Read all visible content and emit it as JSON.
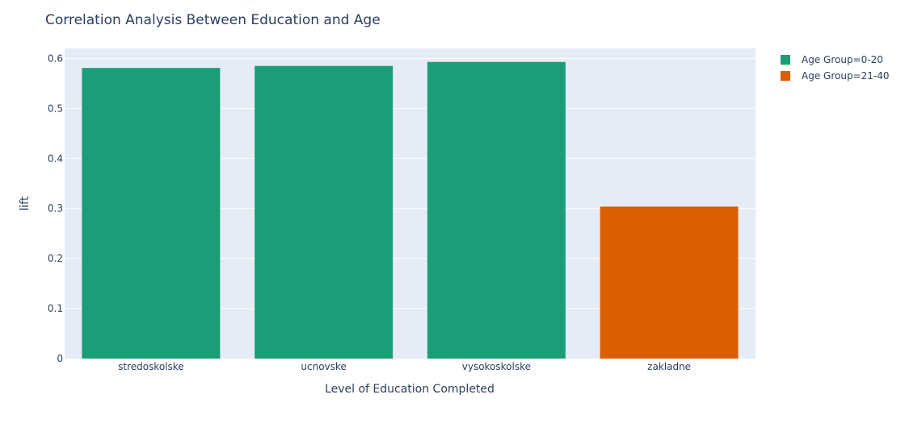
{
  "chart_data": {
    "type": "bar",
    "title": "Correlation Analysis Between Education and Age",
    "xlabel": "Level of Education Completed",
    "ylabel": "lift",
    "ylim": [
      0,
      0.62
    ],
    "yticks": [
      0,
      0.1,
      0.2,
      0.3,
      0.4,
      0.5,
      0.6
    ],
    "ytick_labels": [
      "0",
      "0.1",
      "0.2",
      "0.3",
      "0.4",
      "0.5",
      "0.6"
    ],
    "categories": [
      "stredoskolske",
      "ucnovske",
      "vysokoskolske",
      "zakladne"
    ],
    "grid": true,
    "legend_position": "top-right",
    "background_color": "#e5ecf6",
    "series": [
      {
        "name": "Age Group=0-20",
        "color": "#1b9e77",
        "values": [
          0.581,
          0.585,
          0.593,
          null
        ]
      },
      {
        "name": "Age Group=21-40",
        "color": "#d95f02",
        "values": [
          null,
          null,
          null,
          0.304
        ]
      }
    ]
  }
}
